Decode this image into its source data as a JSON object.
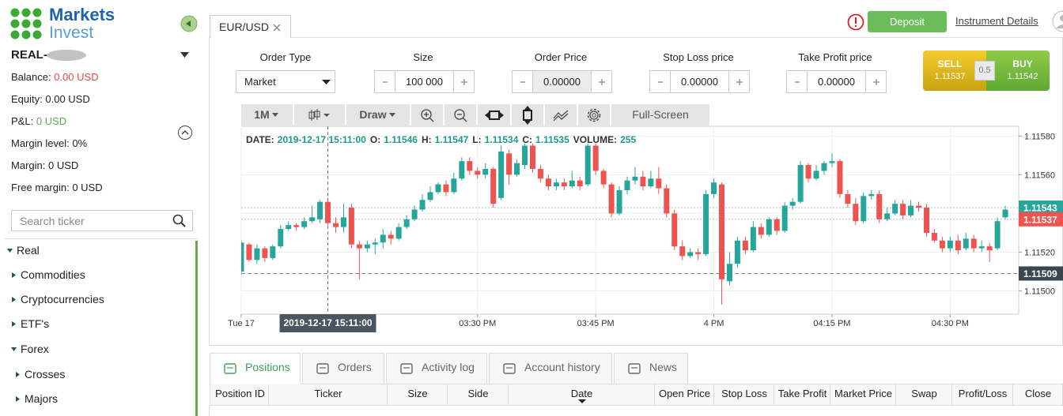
{
  "sidebar": {
    "brand": [
      "Markets",
      "Invest"
    ],
    "account": "REAL-",
    "stats": [
      {
        "label": "Balance:",
        "value": "0.00 USD"
      },
      {
        "label": "Equity:",
        "value": "0.00 USD"
      },
      {
        "label": "P&L:",
        "value": "0 USD"
      },
      {
        "label": "Margin level:",
        "value": "0%"
      },
      {
        "label": "Margin:",
        "value": "0 USD"
      },
      {
        "label": "Free margin:",
        "value": "0 USD"
      }
    ],
    "search_placeholder": "Search ticker",
    "tree": [
      "Real",
      "Commodities",
      "Cryptocurrencies",
      "ETF's",
      "Forex",
      "Crosses",
      "Majors"
    ]
  },
  "header": {
    "tab": "EUR/USD",
    "deposit": "Deposit",
    "instrument_details": "Instrument Details"
  },
  "order_form": {
    "fields": [
      {
        "label": "Order Type",
        "value": "Market"
      },
      {
        "label": "Size",
        "value": "100 000"
      },
      {
        "label": "Order Price",
        "value": "0.00000"
      },
      {
        "label": "Stop Loss price",
        "value": "0.00000"
      },
      {
        "label": "Take Profit price",
        "value": "0.00000"
      }
    ],
    "sell": {
      "label": "SELL",
      "price": "1.11537"
    },
    "spread": "0.5",
    "buy": {
      "label": "BUY",
      "price": "1.11542"
    }
  },
  "toolbar": {
    "interval": "1M",
    "draw": "Draw",
    "fullscreen": "Full-Screen"
  },
  "chart_data": {
    "type": "candlestick",
    "up_color": "#26a69a",
    "down_color": "#ef5350",
    "info": {
      "labels": [
        "DATE:",
        "O:",
        "H:",
        "L:",
        "C:",
        "VOLUME:"
      ],
      "values": [
        "2019-12-17 15:11:00",
        1.11546,
        1.11547,
        1.11534,
        1.11535,
        255
      ]
    },
    "crosshair": {
      "x": 11,
      "label": "2019-12-17 15:11:00"
    },
    "xlim": [
      -0.5,
      98.5
    ],
    "xticks": [
      {
        "value": 0,
        "label": "Tue 17"
      },
      {
        "value": 30,
        "label": "03:30 PM"
      },
      {
        "value": 45,
        "label": "03:45 PM"
      },
      {
        "value": 60,
        "label": "4 PM"
      },
      {
        "value": 75,
        "label": "04:15 PM"
      },
      {
        "value": 90,
        "label": "04:30 PM"
      }
    ],
    "ylim": [
      1.11488,
      1.11585
    ],
    "yticks": [
      {
        "value": 1.1158,
        "label": "1.11580"
      },
      {
        "value": 1.1156,
        "label": "1.11560"
      },
      {
        "value": 1.1154,
        "label": "1.11540"
      },
      {
        "value": 1.1152,
        "label": "1.11520"
      },
      {
        "value": 1.115,
        "label": "1.11500"
      }
    ],
    "grid": true,
    "price_lines": [
      {
        "value": 1.11543,
        "color": "#26a69a",
        "style": "dotted"
      },
      {
        "value": 1.11537,
        "color": "#ef5350",
        "style": "dotted"
      },
      {
        "value": 1.11509,
        "color": "#3c4650",
        "style": "dashed"
      }
    ],
    "candles": [
      [
        1.1151,
        1.11526,
        1.11508,
        1.11525
      ],
      [
        1.11524,
        1.11525,
        1.11515,
        1.11516
      ],
      [
        1.11516,
        1.11524,
        1.11514,
        1.11522
      ],
      [
        1.11522,
        1.11523,
        1.11515,
        1.11517
      ],
      [
        1.11517,
        1.11524,
        1.11516,
        1.11523
      ],
      [
        1.11523,
        1.11534,
        1.11522,
        1.11532
      ],
      [
        1.11532,
        1.11536,
        1.11531,
        1.11534
      ],
      [
        1.11534,
        1.11535,
        1.11531,
        1.11533
      ],
      [
        1.11533,
        1.11538,
        1.11532,
        1.11536
      ],
      [
        1.11536,
        1.11544,
        1.11535,
        1.11538
      ],
      [
        1.11537,
        1.11547,
        1.11535,
        1.11546
      ],
      [
        1.11546,
        1.11547,
        1.11534,
        1.11535
      ],
      [
        1.11535,
        1.11538,
        1.1153,
        1.11533
      ],
      [
        1.11533,
        1.11545,
        1.1153,
        1.11538
      ],
      [
        1.11543,
        1.11545,
        1.11522,
        1.11524
      ],
      [
        1.11524,
        1.11526,
        1.11506,
        1.11522
      ],
      [
        1.11522,
        1.11526,
        1.1152,
        1.11524
      ],
      [
        1.11524,
        1.11527,
        1.11519,
        1.11525
      ],
      [
        1.11525,
        1.11532,
        1.11522,
        1.11529
      ],
      [
        1.11529,
        1.11531,
        1.11524,
        1.11527
      ],
      [
        1.11527,
        1.11535,
        1.11526,
        1.11533
      ],
      [
        1.11533,
        1.11539,
        1.11532,
        1.11537
      ],
      [
        1.11537,
        1.11544,
        1.11536,
        1.11542
      ],
      [
        1.11542,
        1.1155,
        1.11541,
        1.11547
      ],
      [
        1.11547,
        1.11554,
        1.11546,
        1.11551
      ],
      [
        1.11551,
        1.11556,
        1.1155,
        1.11555
      ],
      [
        1.11555,
        1.11557,
        1.11549,
        1.11551
      ],
      [
        1.11551,
        1.11561,
        1.1155,
        1.11558
      ],
      [
        1.11558,
        1.11569,
        1.11557,
        1.11567
      ],
      [
        1.11567,
        1.11569,
        1.1156,
        1.11562
      ],
      [
        1.11562,
        1.11564,
        1.11558,
        1.1156
      ],
      [
        1.1156,
        1.11566,
        1.11558,
        1.11563
      ],
      [
        1.11563,
        1.11564,
        1.11543,
        1.11545
      ],
      [
        1.11548,
        1.11575,
        1.11547,
        1.11572
      ],
      [
        1.11571,
        1.11573,
        1.11555,
        1.1156
      ],
      [
        1.1156,
        1.11568,
        1.11559,
        1.11566
      ],
      [
        1.11565,
        1.11576,
        1.11563,
        1.11575
      ],
      [
        1.11575,
        1.11576,
        1.11561,
        1.11563
      ],
      [
        1.11563,
        1.11565,
        1.11556,
        1.11558
      ],
      [
        1.11558,
        1.1156,
        1.11552,
        1.11554
      ],
      [
        1.11554,
        1.11558,
        1.11552,
        1.11556
      ],
      [
        1.11556,
        1.11558,
        1.11552,
        1.11554
      ],
      [
        1.11554,
        1.11562,
        1.11553,
        1.11557
      ],
      [
        1.11557,
        1.11559,
        1.11552,
        1.11554
      ],
      [
        1.11555,
        1.11576,
        1.11554,
        1.11575
      ],
      [
        1.11575,
        1.11576,
        1.1156,
        1.11562
      ],
      [
        1.11562,
        1.11563,
        1.11553,
        1.11555
      ],
      [
        1.11555,
        1.11556,
        1.11538,
        1.1154
      ],
      [
        1.1154,
        1.11554,
        1.11539,
        1.11552
      ],
      [
        1.11552,
        1.11559,
        1.1155,
        1.11557
      ],
      [
        1.11557,
        1.11564,
        1.11555,
        1.11559
      ],
      [
        1.11559,
        1.11562,
        1.11552,
        1.11554
      ],
      [
        1.11554,
        1.11562,
        1.11553,
        1.11558
      ],
      [
        1.11558,
        1.11564,
        1.1155,
        1.11553
      ],
      [
        1.11553,
        1.11555,
        1.11538,
        1.1154
      ],
      [
        1.1154,
        1.11542,
        1.11521,
        1.11523
      ],
      [
        1.11523,
        1.11526,
        1.11516,
        1.11518
      ],
      [
        1.11518,
        1.11522,
        1.11517,
        1.1152
      ],
      [
        1.1152,
        1.11522,
        1.11516,
        1.11519
      ],
      [
        1.11519,
        1.11552,
        1.11518,
        1.1155
      ],
      [
        1.1155,
        1.11558,
        1.11548,
        1.11556
      ],
      [
        1.11555,
        1.11556,
        1.11493,
        1.11506
      ],
      [
        1.11505,
        1.1152,
        1.11503,
        1.11514
      ],
      [
        1.11514,
        1.11528,
        1.11512,
        1.11526
      ],
      [
        1.11526,
        1.11528,
        1.11519,
        1.11521
      ],
      [
        1.11521,
        1.11536,
        1.1152,
        1.11533
      ],
      [
        1.11533,
        1.11535,
        1.11527,
        1.11529
      ],
      [
        1.11529,
        1.11538,
        1.11528,
        1.11537
      ],
      [
        1.11537,
        1.11538,
        1.11529,
        1.11531
      ],
      [
        1.11531,
        1.11546,
        1.1153,
        1.11544
      ],
      [
        1.11544,
        1.11548,
        1.11542,
        1.11546
      ],
      [
        1.11546,
        1.11567,
        1.11545,
        1.11565
      ],
      [
        1.11565,
        1.11566,
        1.11556,
        1.11558
      ],
      [
        1.11558,
        1.11565,
        1.11557,
        1.11562
      ],
      [
        1.11562,
        1.11567,
        1.1156,
        1.11566
      ],
      [
        1.11566,
        1.11571,
        1.11564,
        1.11567
      ],
      [
        1.11567,
        1.11568,
        1.11548,
        1.1155
      ],
      [
        1.1155,
        1.11552,
        1.11543,
        1.11545
      ],
      [
        1.11545,
        1.11548,
        1.11534,
        1.11536
      ],
      [
        1.11536,
        1.11551,
        1.11535,
        1.11549
      ],
      [
        1.11549,
        1.11552,
        1.11547,
        1.1155
      ],
      [
        1.1155,
        1.11552,
        1.11535,
        1.11537
      ],
      [
        1.11537,
        1.11543,
        1.11536,
        1.1154
      ],
      [
        1.1154,
        1.11547,
        1.11539,
        1.11545
      ],
      [
        1.11545,
        1.11547,
        1.11537,
        1.11539
      ],
      [
        1.11539,
        1.11547,
        1.11538,
        1.11544
      ],
      [
        1.11544,
        1.11546,
        1.11541,
        1.11543
      ],
      [
        1.11543,
        1.11545,
        1.11528,
        1.1153
      ],
      [
        1.1153,
        1.11532,
        1.11525,
        1.11526
      ],
      [
        1.11526,
        1.11528,
        1.1152,
        1.11522
      ],
      [
        1.11522,
        1.11528,
        1.1152,
        1.11526
      ],
      [
        1.11526,
        1.11529,
        1.11519,
        1.11521
      ],
      [
        1.11522,
        1.1153,
        1.11521,
        1.11527
      ],
      [
        1.11527,
        1.11529,
        1.1152,
        1.11522
      ],
      [
        1.11522,
        1.11526,
        1.1152,
        1.11523
      ],
      [
        1.11523,
        1.11525,
        1.11515,
        1.11521
      ],
      [
        1.11522,
        1.11538,
        1.11521,
        1.11536
      ],
      [
        1.11538,
        1.11544,
        1.11537,
        1.11542
      ]
    ]
  },
  "bottom_tabs": [
    "Positions",
    "Orders",
    "Activity log",
    "Account history",
    "News"
  ],
  "table": {
    "columns": [
      "Position ID",
      "Ticker",
      "Size",
      "Side",
      "Date",
      "Open Price",
      "Stop Loss",
      "Take Profit",
      "Market Price",
      "Swap",
      "Profit/Loss",
      "Close"
    ]
  }
}
